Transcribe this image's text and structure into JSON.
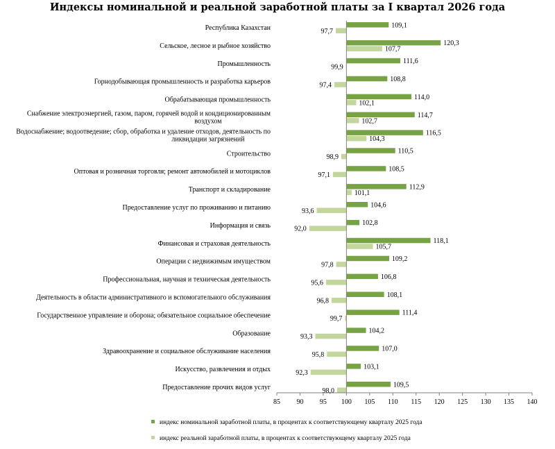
{
  "colors": {
    "nominal": "#77a345",
    "real": "#c3d69b",
    "axis": "#808080"
  },
  "chart_data": {
    "type": "bar",
    "orientation": "horizontal",
    "title": "Индексы номинальной и реальной заработной платы за I квартал 2026 года",
    "categories": [
      [
        "Республика Казахстан"
      ],
      [
        "Сельское, лесное  и рыбное хозяйство"
      ],
      [
        "Промышленность"
      ],
      [
        "Горнодобывающая промышленность  и разработка карьеров"
      ],
      [
        "Обрабатывающая промышленность"
      ],
      [
        "Снабжение  электроэнергией, газом, паром, горячей водой  и кондиционированным",
        "воздухом"
      ],
      [
        "Водоснабжение;  водоотведение;  сбор, обработка и удаление отходов, деятельность по",
        "ликвидации  загрязнений"
      ],
      [
        "Строительство"
      ],
      [
        "Оптовая и розничная торговля; ремонт автомобилей  и мотоциклов"
      ],
      [
        "Транспорт и складирование"
      ],
      [
        "Предоставление услуг по проживанию и питанию"
      ],
      [
        "Информация и связь"
      ],
      [
        "Финансовая  и страховая деятельность"
      ],
      [
        "Операции  с недвижимым  имуществом"
      ],
      [
        "Профессиональная, научная и техническая  деятельность"
      ],
      [
        "Деятельность в области административного  и вспомогательного  обслуживания"
      ],
      [
        "Государственное управление и оборона; обязательное  социальное обеспечение"
      ],
      [
        "Образование"
      ],
      [
        "Здравоохранение и социальное обслуживание населения"
      ],
      [
        "Искусство, развлечения и отдых"
      ],
      [
        "Предоставление прочих  видов услуг"
      ]
    ],
    "series": [
      {
        "name": "индекс  номинальной  заработной платы, в процентах  к соответствующему кварталу 2025  года",
        "values": [
          109.1,
          120.3,
          111.6,
          108.8,
          114.0,
          114.7,
          116.5,
          110.5,
          108.5,
          112.9,
          104.6,
          102.8,
          118.1,
          109.2,
          106.8,
          108.1,
          111.4,
          104.2,
          107.0,
          103.1,
          109.5
        ],
        "labels": [
          "109,1",
          "120,3",
          "111,6",
          "108,8",
          "114,0",
          "114,7",
          "116,5",
          "110,5",
          "108,5",
          "112,9",
          "104,6",
          "102,8",
          "118,1",
          "109,2",
          "106,8",
          "108,1",
          "111,4",
          "104,2",
          "107,0",
          "103,1",
          "109,5"
        ]
      },
      {
        "name": "индекс  реальной заработной платы, в процентах  к соответствующему кварталу 2025  года",
        "values": [
          97.7,
          107.7,
          99.9,
          97.4,
          102.1,
          102.7,
          104.3,
          98.9,
          97.1,
          101.1,
          93.6,
          92.0,
          105.7,
          97.8,
          95.6,
          96.8,
          99.7,
          93.3,
          95.8,
          92.3,
          98.0
        ],
        "labels": [
          "97,7",
          "107,7",
          "99,9",
          "97,4",
          "102,1",
          "102,7",
          "104,3",
          "98,9",
          "97,1",
          "101,1",
          "93,6",
          "92,0",
          "105,7",
          "97,8",
          "95,6",
          "96,8",
          "99,7",
          "93,3",
          "95,8",
          "92,3",
          "98,0"
        ]
      }
    ],
    "xlim": [
      85,
      140
    ],
    "xticks": [
      85,
      90,
      95,
      100,
      105,
      110,
      115,
      120,
      125,
      130,
      135,
      140
    ],
    "baseline": 100,
    "grid": false,
    "legend_position": "bottom"
  }
}
